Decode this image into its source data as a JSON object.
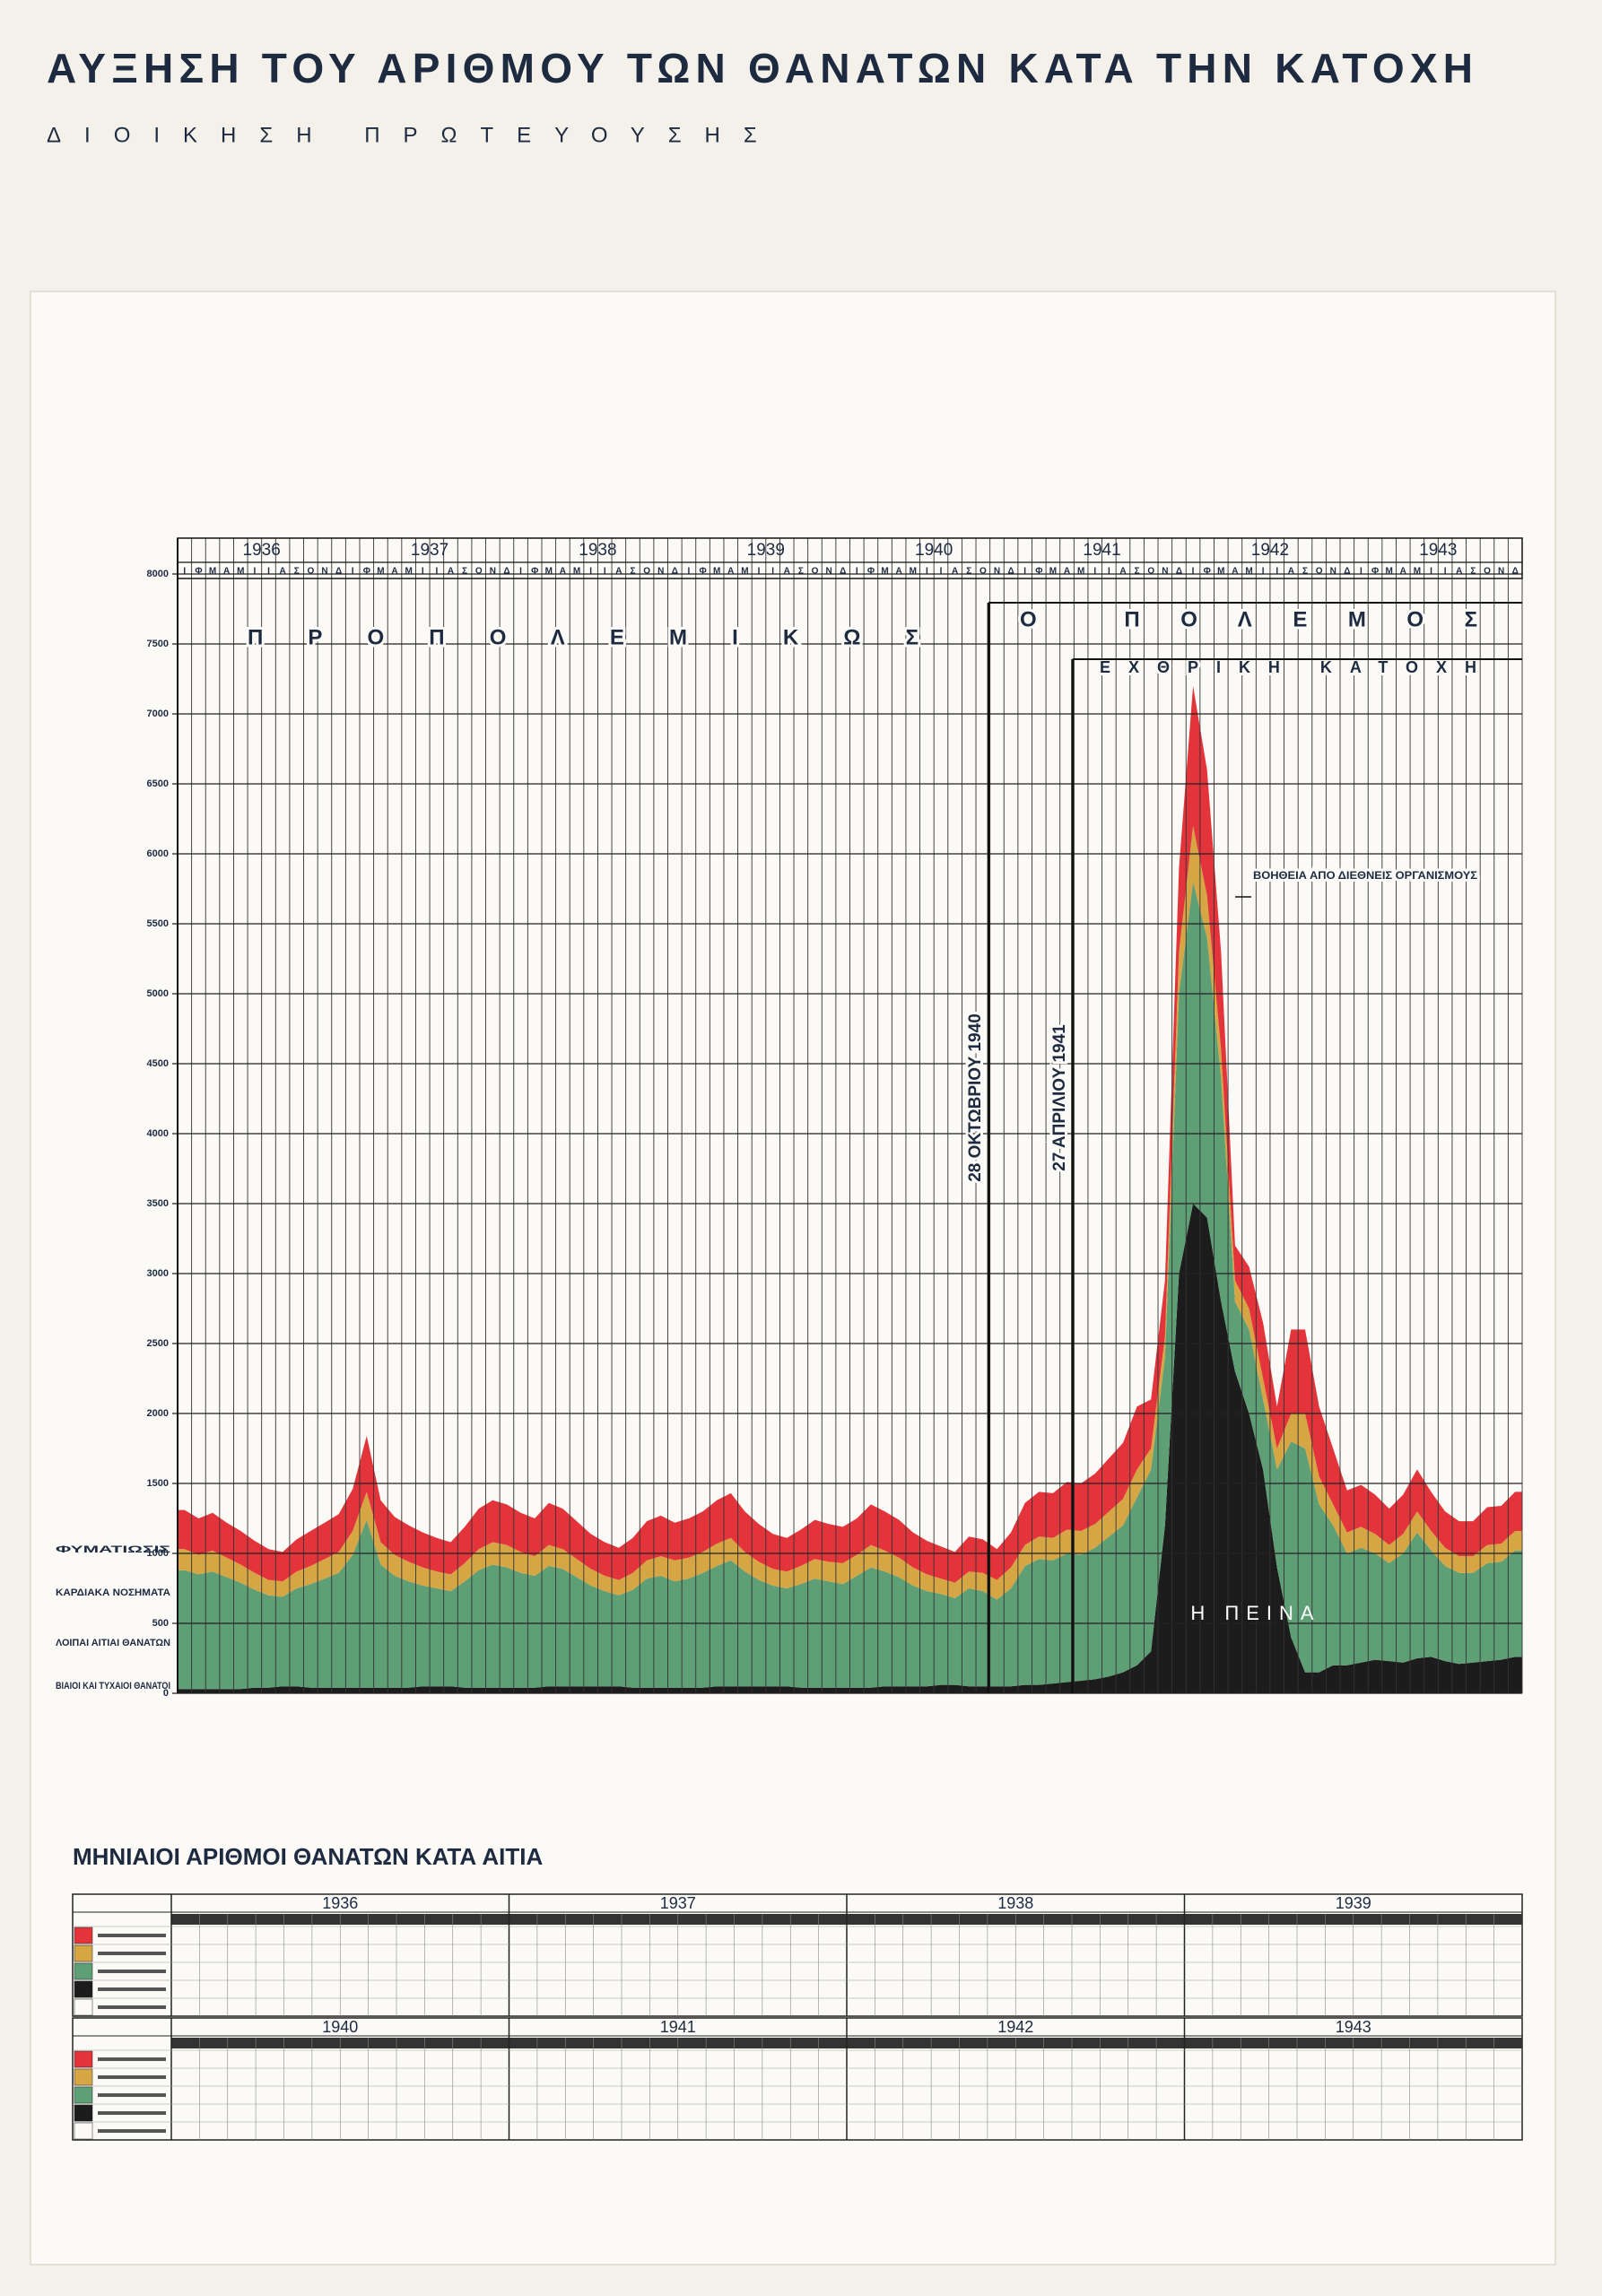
{
  "chart_data": {
    "type": "stacked-area",
    "title": "ΑΥΞΗΣΗ ΤΟΥ ΑΡΙΘΜΟΥ ΤΩΝ ΘΑΝΑΤΩΝ ΚΑΤΑ ΤΗΝ ΚΑΤΟΧΗ",
    "subtitle": "ΔΙΟΙΚΗΣΗ ΠΡΩΤΕΥΟΥΣΗΣ",
    "year_labels": [
      "1936",
      "1937",
      "1938",
      "1939",
      "1940",
      "1941",
      "1942",
      "1943"
    ],
    "categories": [
      "Ι",
      "Φ",
      "Μ",
      "Α",
      "Μ",
      "Ι",
      "Ι",
      "Α",
      "Σ",
      "Ο",
      "Ν",
      "Δ",
      "Ι",
      "Φ",
      "Μ",
      "Α",
      "Μ",
      "Ι",
      "Ι",
      "Α",
      "Σ",
      "Ο",
      "Ν",
      "Δ",
      "Ι",
      "Φ",
      "Μ",
      "Α",
      "Μ",
      "Ι",
      "Ι",
      "Α",
      "Σ",
      "Ο",
      "Ν",
      "Δ",
      "Ι",
      "Φ",
      "Μ",
      "Α",
      "Μ",
      "Ι",
      "Ι",
      "Α",
      "Σ",
      "Ο",
      "Ν",
      "Δ",
      "Ι",
      "Φ",
      "Μ",
      "Α",
      "Μ",
      "Ι",
      "Ι",
      "Α",
      "Σ",
      "Ο",
      "Ν",
      "Δ",
      "Ι",
      "Φ",
      "Μ",
      "Α",
      "Μ",
      "Ι",
      "Ι",
      "Α",
      "Σ",
      "Ο",
      "Ν",
      "Δ",
      "Ι",
      "Φ",
      "Μ",
      "Α",
      "Μ",
      "Ι",
      "Ι",
      "Α",
      "Σ",
      "Ο",
      "Ν",
      "Δ",
      "Ι",
      "Φ",
      "Μ",
      "Α",
      "Μ",
      "Ι",
      "Ι",
      "Α",
      "Σ",
      "Ο",
      "Ν",
      "Δ"
    ],
    "series": [
      {
        "name": "ΒΙΑΙΟΙ ΚΑΙ ΤΥΧΑΙΟΙ ΘΑΝΑΤΟΙ",
        "color": "#1c1c1c",
        "values": [
          30,
          30,
          30,
          30,
          30,
          40,
          40,
          50,
          50,
          40,
          40,
          40,
          40,
          40,
          40,
          40,
          40,
          50,
          50,
          50,
          40,
          40,
          40,
          40,
          40,
          40,
          50,
          50,
          50,
          50,
          50,
          50,
          40,
          40,
          40,
          40,
          40,
          40,
          50,
          50,
          50,
          50,
          50,
          50,
          40,
          40,
          40,
          40,
          40,
          40,
          50,
          50,
          50,
          50,
          60,
          60,
          50,
          50,
          50,
          50,
          60,
          60,
          70,
          80,
          90,
          100,
          120,
          150,
          200,
          300,
          1200,
          3000,
          3500,
          3400,
          2800,
          2300,
          2000,
          1600,
          900,
          400,
          150,
          150,
          200,
          200,
          220,
          240,
          230,
          220,
          250,
          260,
          230,
          210,
          220,
          230,
          240,
          260
        ]
      },
      {
        "name": "ΛΟΙΠΑΙ ΑΙΤΙΑΙ ΘΑΝΑΤΩΝ",
        "color": "#5e9f76",
        "values": [
          850,
          820,
          840,
          800,
          760,
          700,
          660,
          640,
          700,
          740,
          780,
          820,
          950,
          1200,
          880,
          800,
          760,
          720,
          700,
          680,
          760,
          840,
          880,
          860,
          820,
          800,
          860,
          840,
          780,
          720,
          680,
          650,
          700,
          780,
          800,
          760,
          780,
          820,
          860,
          900,
          820,
          760,
          720,
          700,
          740,
          780,
          760,
          740,
          800,
          860,
          820,
          780,
          720,
          680,
          650,
          620,
          700,
          680,
          620,
          700,
          850,
          900,
          880,
          920,
          900,
          940,
          1000,
          1050,
          1200,
          1300,
          1200,
          2000,
          2300,
          2000,
          1600,
          500,
          600,
          500,
          700,
          1400,
          1600,
          1200,
          1000,
          800,
          820,
          760,
          700,
          780,
          900,
          760,
          680,
          650,
          640,
          700,
          700,
          760
        ]
      },
      {
        "name": "ΚΑΡΔΙΑΚΑ ΝΟΣΗΜΑΤΑ",
        "color": "#d6a544",
        "values": [
          150,
          140,
          150,
          140,
          130,
          120,
          110,
          110,
          120,
          130,
          140,
          150,
          170,
          200,
          160,
          150,
          140,
          130,
          120,
          120,
          130,
          150,
          160,
          160,
          150,
          140,
          150,
          140,
          130,
          120,
          110,
          110,
          120,
          130,
          140,
          150,
          150,
          150,
          160,
          160,
          140,
          130,
          120,
          120,
          130,
          140,
          140,
          150,
          150,
          160,
          150,
          140,
          130,
          120,
          110,
          110,
          120,
          130,
          140,
          150,
          150,
          160,
          160,
          170,
          170,
          170,
          180,
          190,
          200,
          150,
          150,
          300,
          400,
          300,
          200,
          150,
          150,
          150,
          150,
          200,
          250,
          200,
          150,
          150,
          150,
          140,
          130,
          140,
          150,
          140,
          130,
          120,
          120,
          130,
          130,
          140
        ]
      },
      {
        "name": "ΦΥΜΑΤΙΩΣΙΣ",
        "color": "#e3343b",
        "values": [
          280,
          260,
          270,
          250,
          240,
          230,
          220,
          210,
          230,
          250,
          260,
          270,
          300,
          400,
          300,
          270,
          260,
          250,
          240,
          230,
          260,
          290,
          300,
          290,
          280,
          270,
          300,
          290,
          270,
          250,
          240,
          230,
          250,
          280,
          290,
          270,
          280,
          290,
          310,
          320,
          290,
          270,
          250,
          240,
          260,
          280,
          270,
          260,
          260,
          290,
          280,
          270,
          250,
          240,
          230,
          220,
          250,
          240,
          220,
          250,
          300,
          320,
          320,
          340,
          340,
          360,
          380,
          400,
          450,
          350,
          400,
          600,
          1000,
          900,
          700,
          250,
          300,
          400,
          300,
          600,
          600,
          500,
          400,
          300,
          300,
          280,
          260,
          280,
          300,
          280,
          260,
          250,
          250,
          270,
          270,
          280
        ]
      }
    ],
    "ylim": [
      0,
      8000
    ],
    "yticks": [
      0,
      500,
      1000,
      1500,
      2000,
      2500,
      3000,
      3500,
      4000,
      4500,
      5000,
      5500,
      6000,
      6500,
      7000,
      7500,
      8000
    ],
    "grid": true,
    "annotations": {
      "prewar": "ΠΡΟΠΟΛΕΜΙΚΩΣ",
      "war": "Ο ΠΟΛΕΜΟΣ",
      "occupation": "ΕΧΘΡΙΚΗ ΚΑΤΟΧΗ",
      "war_date": "28 ΟΚΤΩΒΡΙΟΥ 1940",
      "occupation_date": "27 ΑΠΡΙΛΙΟΥ 1941",
      "aid": "ΒΟΗΘΕΙΑ ΑΠΟ ΔΙΕΘΝΕΙΣ ΟΡΓΑΝΙΣΜΟΥΣ",
      "hunger": "Η ΠΕΙΝΑ"
    },
    "table_title": "ΜΗΝΙΑΙΟΙ ΑΡΙΘΜΟΙ ΘΑΝΑΤΩΝ ΚΑΤΑ ΑΙΤΙΑ"
  }
}
